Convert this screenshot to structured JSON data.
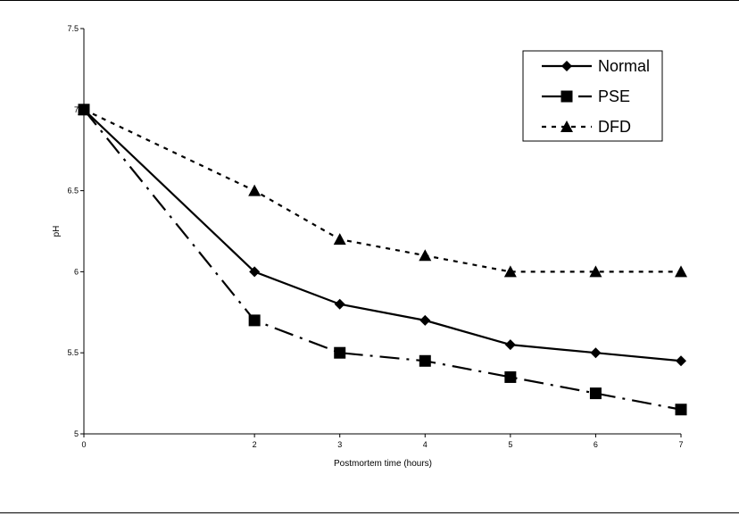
{
  "chart_data": {
    "type": "line",
    "xlabel": "Postmortem time (hours)",
    "ylabel": "pH",
    "categories": [
      "0",
      "2",
      "3",
      "4",
      "5",
      "6",
      "7"
    ],
    "ylim": [
      5,
      7.5
    ],
    "yticks": [
      "5",
      "5.5",
      "6",
      "6.5",
      "7",
      "7.5"
    ],
    "grid": false,
    "legend": "top-right",
    "series": [
      {
        "name": "Normal",
        "values": [
          7.0,
          6.0,
          5.8,
          5.7,
          5.55,
          5.5,
          5.45
        ],
        "marker": "diamond",
        "line": "solid"
      },
      {
        "name": "PSE",
        "values": [
          7.0,
          5.7,
          5.5,
          5.45,
          5.35,
          5.25,
          5.15
        ],
        "marker": "square",
        "line": "dashdot"
      },
      {
        "name": "DFD",
        "values": [
          7.0,
          6.5,
          6.2,
          6.1,
          6.0,
          6.0,
          6.0
        ],
        "marker": "triangle",
        "line": "dotted"
      }
    ]
  }
}
